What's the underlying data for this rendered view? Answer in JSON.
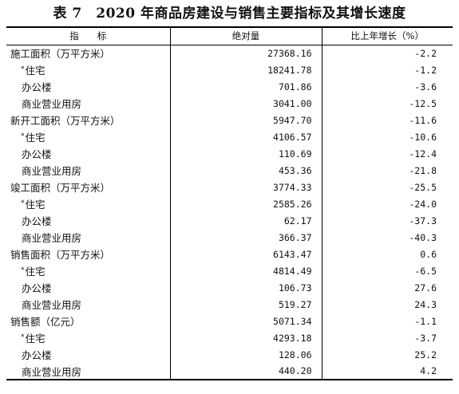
{
  "title": "表 7　2020 年商品房建设与销售主要指标及其增长速度",
  "headers": {
    "indicator": "指　　标",
    "absolute": "绝对量",
    "growth": "比上年增长（%）"
  },
  "rows": [
    {
      "label": "施工面积（万平方米）",
      "star": "",
      "value": "27368.16",
      "growth": "-2.2"
    },
    {
      "label": "住宅",
      "star": "*",
      "value": "18241.78",
      "growth": "-1.2"
    },
    {
      "label": "办公楼",
      "star": "",
      "value": "701.86",
      "growth": "-3.6"
    },
    {
      "label": "商业营业用房",
      "star": "",
      "value": "3041.00",
      "growth": "-12.5"
    },
    {
      "label": "新开工面积（万平方米）",
      "star": "",
      "value": "5947.70",
      "growth": "-11.6"
    },
    {
      "label": "住宅",
      "star": "*",
      "value": "4106.57",
      "growth": "-10.6"
    },
    {
      "label": "办公楼",
      "star": "",
      "value": "110.69",
      "growth": "-12.4"
    },
    {
      "label": "商业营业用房",
      "star": "",
      "value": "453.36",
      "growth": "-21.8"
    },
    {
      "label": "竣工面积（万平方米）",
      "star": "",
      "value": "3774.33",
      "growth": "-25.5"
    },
    {
      "label": "住宅",
      "star": "*",
      "value": "2585.26",
      "growth": "-24.0"
    },
    {
      "label": "办公楼",
      "star": "",
      "value": "62.17",
      "growth": "-37.3"
    },
    {
      "label": "商业营业用房",
      "star": "",
      "value": "366.37",
      "growth": "-40.3"
    },
    {
      "label": "销售面积（万平方米）",
      "star": "",
      "value": "6143.47",
      "growth": "0.6"
    },
    {
      "label": "住宅",
      "star": "*",
      "value": "4814.49",
      "growth": "-6.5"
    },
    {
      "label": "办公楼",
      "star": "",
      "value": "106.73",
      "growth": "27.6"
    },
    {
      "label": "商业营业用房",
      "star": "",
      "value": "519.27",
      "growth": "24.3"
    },
    {
      "label": "销售额（亿元）",
      "star": "",
      "value": "5071.34",
      "growth": "-1.1"
    },
    {
      "label": "住宅",
      "star": "*",
      "value": "4293.18",
      "growth": "-3.7"
    },
    {
      "label": "办公楼",
      "star": "",
      "value": "128.06",
      "growth": "25.2"
    },
    {
      "label": "商业营业用房",
      "star": "",
      "value": "440.20",
      "growth": "4.2"
    }
  ]
}
